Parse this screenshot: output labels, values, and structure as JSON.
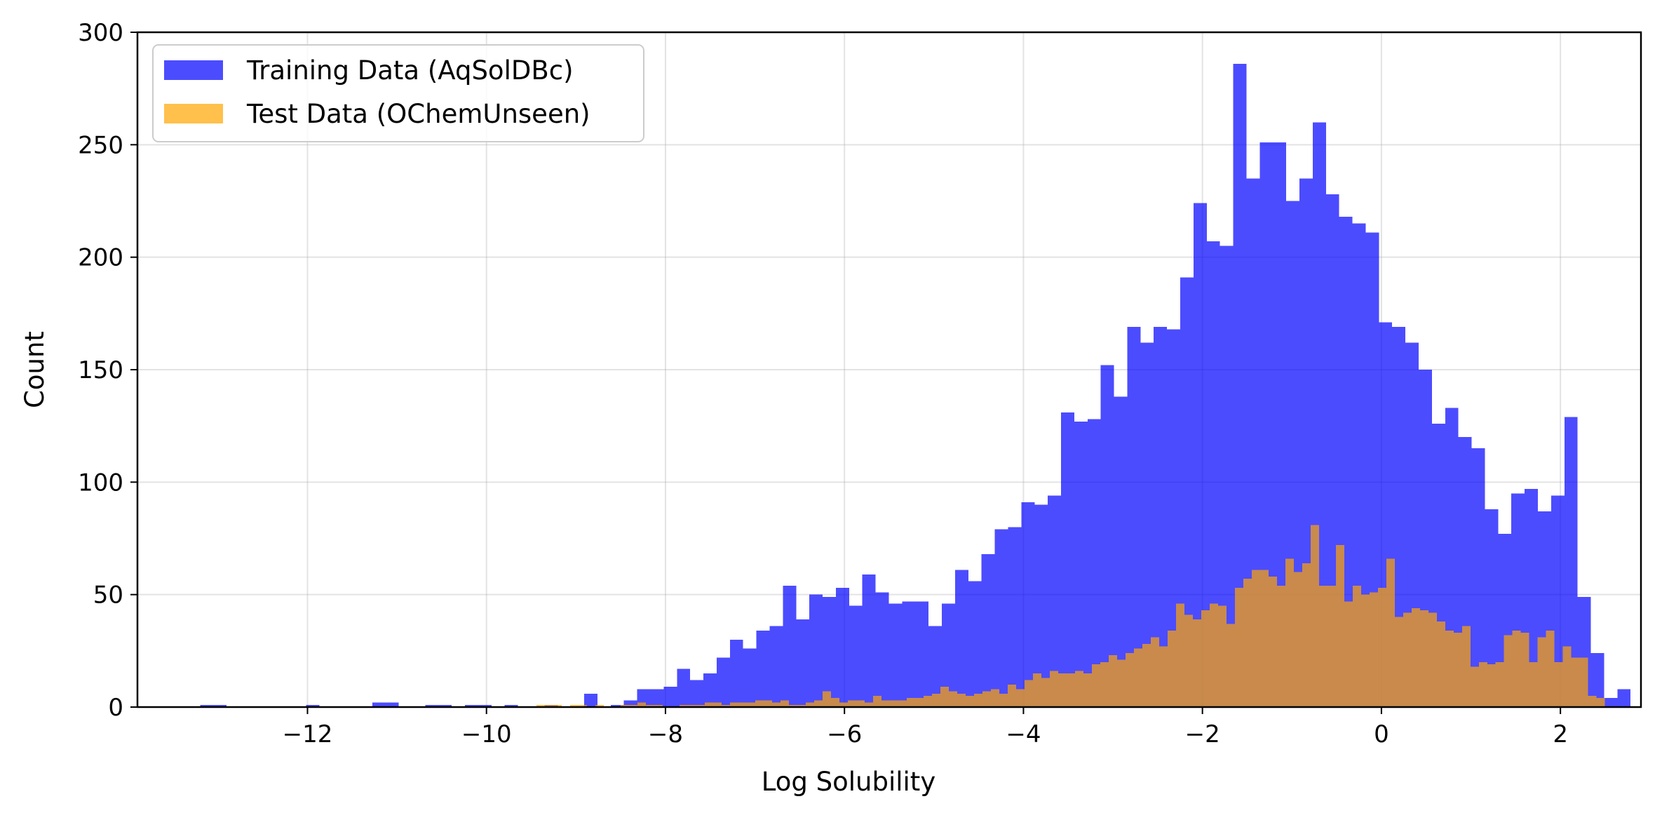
{
  "chart_data": {
    "type": "bar",
    "histogram": true,
    "title": "",
    "xlabel": "Log Solubility",
    "ylabel": "Count",
    "xlim": [
      -13.9,
      2.9
    ],
    "ylim": [
      0,
      300
    ],
    "xticks": [
      -12,
      -10,
      -8,
      -6,
      -4,
      -2,
      0,
      2
    ],
    "xtick_labels": [
      "−12",
      "−10",
      "−8",
      "−6",
      "−4",
      "−2",
      "0",
      "2"
    ],
    "yticks": [
      0,
      50,
      100,
      150,
      200,
      250,
      300
    ],
    "ytick_labels": [
      "0",
      "50",
      "100",
      "150",
      "200",
      "250",
      "300"
    ],
    "grid": true,
    "legend_position": "top-left",
    "colors": {
      "training": "#0000ff",
      "test": "#ffa500",
      "overlap": "#c98b4c"
    },
    "opacity": 0.7,
    "series": [
      {
        "name": "Training Data (AqSolDBc)",
        "color": "#0000ff",
        "bin_start": -13.2,
        "bin_width": 0.148,
        "values": [
          1,
          1,
          0,
          0,
          0,
          0,
          0,
          0,
          1,
          0,
          0,
          0,
          0,
          2,
          2,
          0,
          0,
          1,
          1,
          0,
          1,
          1,
          0,
          1,
          0,
          0,
          1,
          0,
          0,
          6,
          0,
          1,
          3,
          8,
          8,
          9,
          17,
          12,
          15,
          22,
          30,
          26,
          34,
          36,
          54,
          39,
          50,
          49,
          53,
          45,
          59,
          51,
          46,
          47,
          47,
          36,
          46,
          61,
          56,
          68,
          79,
          80,
          91,
          90,
          94,
          131,
          127,
          128,
          152,
          138,
          169,
          162,
          169,
          168,
          191,
          224,
          207,
          205,
          286,
          235,
          251,
          251,
          225,
          235,
          260,
          228,
          218,
          215,
          211,
          171,
          169,
          162,
          150,
          126,
          133,
          120,
          115,
          88,
          77,
          95,
          97,
          87,
          94,
          129,
          49,
          24,
          4,
          8,
          0,
          0,
          0,
          0,
          1
        ]
      },
      {
        "name": "Test Data (OChemUnseen)",
        "color": "#ffa500",
        "bin_start": -13.2,
        "bin_width": 0.094,
        "values": [
          0,
          0,
          0,
          0,
          0,
          0,
          0,
          0,
          0,
          0,
          0,
          0,
          0,
          0,
          0,
          0,
          0,
          0,
          0,
          0,
          0,
          0,
          0,
          0,
          0,
          0,
          0,
          0,
          0,
          0,
          0,
          0,
          0,
          0,
          0,
          0,
          0,
          0,
          0,
          0,
          1,
          1,
          1,
          0,
          1,
          1,
          0,
          1,
          0,
          0,
          1,
          1,
          2,
          1,
          1,
          0,
          0,
          1,
          1,
          1,
          2,
          2,
          1,
          2,
          2,
          2,
          3,
          3,
          2,
          3,
          1,
          1,
          2,
          3,
          7,
          4,
          2,
          3,
          3,
          2,
          5,
          3,
          3,
          3,
          4,
          4,
          5,
          6,
          9,
          7,
          6,
          5,
          6,
          7,
          8,
          6,
          10,
          8,
          12,
          15,
          13,
          16,
          15,
          15,
          16,
          15,
          19,
          20,
          23,
          21,
          24,
          26,
          28,
          31,
          27,
          34,
          46,
          41,
          39,
          43,
          46,
          45,
          37,
          53,
          57,
          61,
          61,
          58,
          54,
          66,
          60,
          64,
          81,
          54,
          54,
          72,
          47,
          54,
          50,
          51,
          53,
          66,
          40,
          42,
          44,
          43,
          42,
          38,
          34,
          33,
          36,
          18,
          20,
          19,
          20,
          32,
          34,
          33,
          20,
          31,
          34,
          20,
          27,
          22,
          22,
          5,
          4,
          0,
          0,
          0,
          0,
          0,
          0,
          0
        ]
      }
    ]
  }
}
